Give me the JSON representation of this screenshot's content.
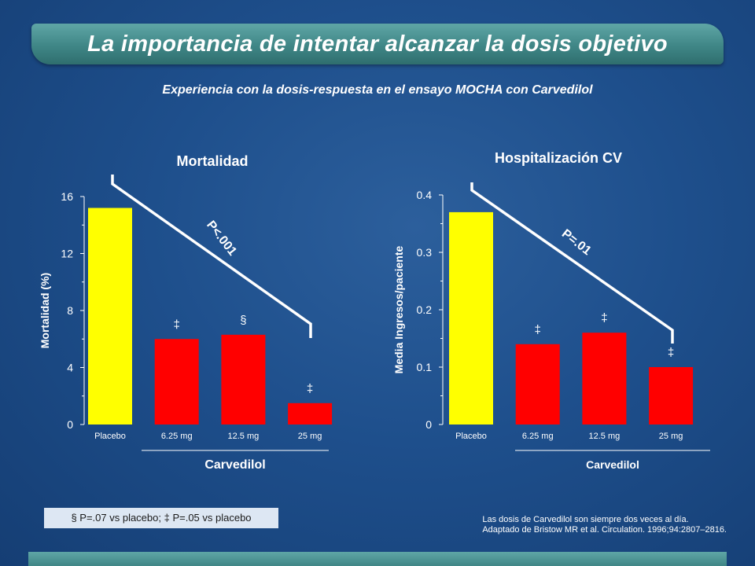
{
  "header": {
    "title": "La importancia de intentar alcanzar la dosis objetivo",
    "subtitle": "Experiencia con la dosis-respuesta en el ensayo MOCHA con Carvedilol"
  },
  "colors": {
    "placebo": "#ffff00",
    "carvedilol": "#ff0000"
  },
  "chart_data": [
    {
      "type": "bar",
      "title": "Mortalidad",
      "ylabel": "Mortalidad (%)",
      "categories": [
        "Placebo",
        "6.25 mg",
        "12.5 mg",
        "25 mg"
      ],
      "values": [
        15.2,
        6.0,
        6.3,
        1.5
      ],
      "markers": [
        "",
        "‡",
        "§",
        "‡"
      ],
      "ylim": [
        0,
        16
      ],
      "yticks": [
        "0",
        "4",
        "8",
        "12",
        "16"
      ],
      "group_label": "Carvedilol",
      "trend_label": "P<.001"
    },
    {
      "type": "bar",
      "title": "Hospitalización CV",
      "ylabel": "Media Ingresos/paciente",
      "categories": [
        "Placebo",
        "6.25 mg",
        "12.5 mg",
        "25 mg"
      ],
      "values": [
        0.37,
        0.14,
        0.16,
        0.1
      ],
      "markers": [
        "",
        "‡",
        "‡",
        "‡"
      ],
      "ylim": [
        0,
        0.4
      ],
      "yticks": [
        "0",
        "0.1",
        "0.2",
        "0.3",
        "0.4"
      ],
      "group_label": "Carvedilol",
      "trend_label": "P=.01"
    }
  ],
  "footnote": "§ P=.07 vs placebo; ‡ P=.05 vs placebo",
  "reference": {
    "line1": "Las dosis de Carvedilol son siempre dos veces al día.",
    "line2": "Adaptado de Bristow MR et al. Circulation. 1996;94:2807–2816."
  }
}
